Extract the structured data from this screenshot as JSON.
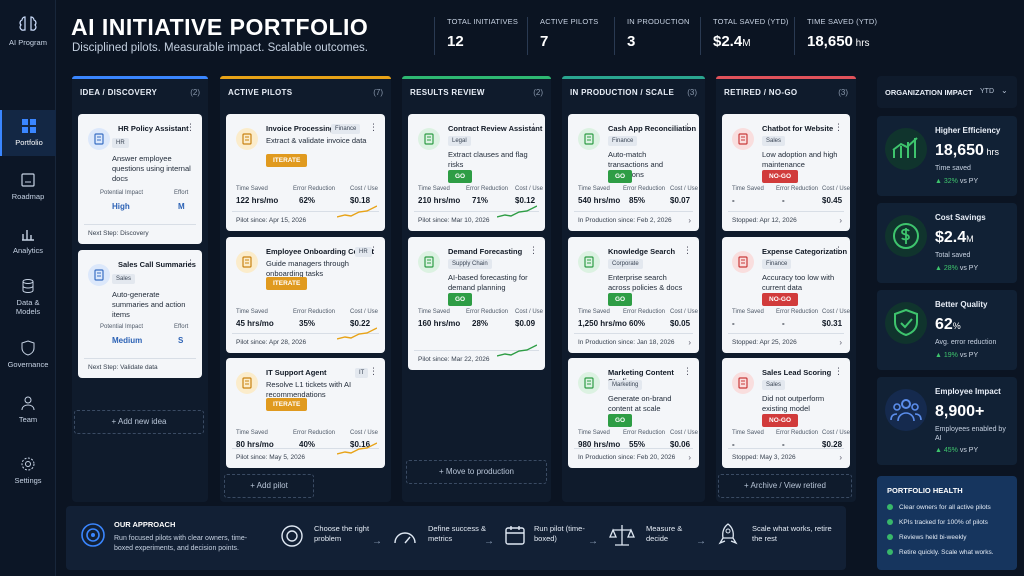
{
  "sidebar": {
    "brand": "AI Program",
    "items": [
      {
        "label": "Portfolio",
        "icon": "grid-icon"
      },
      {
        "label": "Roadmap",
        "icon": "roadmap-icon"
      },
      {
        "label": "Analytics",
        "icon": "analytics-icon"
      },
      {
        "label": "Data & Models",
        "icon": "database-icon"
      },
      {
        "label": "Governance",
        "icon": "shield-icon"
      },
      {
        "label": "Team",
        "icon": "team-icon"
      },
      {
        "label": "Settings",
        "icon": "gear-icon"
      }
    ]
  },
  "header": {
    "title": "AI INITIATIVE PORTFOLIO",
    "subtitle": "Disciplined pilots. Measurable impact. Scalable outcomes.",
    "stats": [
      {
        "label": "TOTAL INITIATIVES",
        "value": "12",
        "unit": ""
      },
      {
        "label": "ACTIVE PILOTS",
        "value": "7",
        "unit": ""
      },
      {
        "label": "IN PRODUCTION",
        "value": "3",
        "unit": ""
      },
      {
        "label": "TOTAL SAVED (YTD)",
        "value": "$2.4",
        "unit": "M"
      },
      {
        "label": "TIME SAVED (YTD)",
        "value": "18,650",
        "unit": " hrs"
      }
    ]
  },
  "columns": {
    "idea": {
      "title": "IDEA / DISCOVERY",
      "count": "(2)",
      "color": "#3a86ff",
      "cards": [
        {
          "title": "HR Policy Assistant",
          "tag": "HR",
          "desc": "Answer employee questions using internal docs",
          "m1l": "Potential Impact",
          "m1v": "High",
          "m2l": "Effort",
          "m2v": "M",
          "next": "Next Step: Discovery"
        },
        {
          "title": "Sales Call Summaries",
          "tag": "Sales",
          "desc": "Auto-generate summaries and action items",
          "m1l": "Potential Impact",
          "m1v": "Medium",
          "m2l": "Effort",
          "m2v": "S",
          "next": "Next Step: Validate data"
        }
      ],
      "button": "+ Add new idea"
    },
    "pilots": {
      "title": "ACTIVE PILOTS",
      "count": "(7)",
      "color": "#e8a317",
      "cards": [
        {
          "title": "Invoice Processing",
          "tag": "Finance",
          "desc": "Extract & validate invoice data",
          "status": "ITERATE",
          "ts": "122 hrs/mo",
          "er": "62%",
          "cu": "$0.18",
          "since": "Pilot since: Apr 15, 2026"
        },
        {
          "title": "Employee Onboarding Copilot",
          "tag": "HR",
          "desc": "Guide managers through onboarding tasks",
          "status": "ITERATE",
          "ts": "45 hrs/mo",
          "er": "35%",
          "cu": "$0.22",
          "since": "Pilot since: Apr 28, 2026"
        },
        {
          "title": "IT Support Agent",
          "tag": "IT",
          "desc": "Resolve L1 tickets with AI recommendations",
          "status": "ITERATE",
          "ts": "80 hrs/mo",
          "er": "40%",
          "cu": "$0.16",
          "since": "Pilot since: May 5, 2026"
        }
      ],
      "button": "+ Add pilot"
    },
    "results": {
      "title": "RESULTS REVIEW",
      "count": "(2)",
      "color": "#2eb872",
      "cards": [
        {
          "title": "Contract Review Assistant",
          "tag": "Legal",
          "desc": "Extract clauses and flag risks",
          "status": "GO",
          "ts": "210 hrs/mo",
          "er": "71%",
          "cu": "$0.12",
          "since": "Pilot since: Mar 10, 2026"
        },
        {
          "title": "Demand Forecasting",
          "tag": "Supply Chain",
          "desc": "AI-based forecasting for demand planning",
          "status": "GO",
          "ts": "160 hrs/mo",
          "er": "28%",
          "cu": "$0.09",
          "since": "Pilot since: Mar 22, 2026"
        }
      ],
      "button": "+ Move to production"
    },
    "prod": {
      "title": "IN PRODUCTION / SCALE",
      "count": "(3)",
      "color": "#2aa58f",
      "cards": [
        {
          "title": "Cash App Reconciliation",
          "tag": "Finance",
          "desc": "Auto-match transactions and exceptions",
          "status": "GO",
          "ts": "540 hrs/mo",
          "er": "85%",
          "cu": "$0.07",
          "since": "In Production since: Feb 2, 2026"
        },
        {
          "title": "Knowledge Search",
          "tag": "Corporate",
          "desc": "Enterprise search across policies & docs",
          "status": "GO",
          "ts": "1,250 hrs/mo",
          "er": "60%",
          "cu": "$0.05",
          "since": "In Production since: Jan 18, 2026"
        },
        {
          "title": "Marketing Content Studio",
          "tag": "Marketing",
          "desc": "Generate on-brand content at scale",
          "status": "GO",
          "ts": "980 hrs/mo",
          "er": "55%",
          "cu": "$0.06",
          "since": "In Production since: Feb 20, 2026"
        }
      ]
    },
    "retired": {
      "title": "RETIRED / NO-GO",
      "count": "(3)",
      "color": "#e0525a",
      "cards": [
        {
          "title": "Chatbot for Website",
          "tag": "Sales",
          "desc": "Low adoption and high maintenance",
          "status": "NO-GO",
          "ts": "-",
          "er": "-",
          "cu": "$0.45",
          "since": "Stopped: Apr 12, 2026"
        },
        {
          "title": "Expense Categorization",
          "tag": "Finance",
          "desc": "Accuracy too low with current data",
          "status": "NO-GO",
          "ts": "-",
          "er": "-",
          "cu": "$0.31",
          "since": "Stopped: Apr 25, 2026"
        },
        {
          "title": "Sales Lead Scoring",
          "tag": "Sales",
          "desc": "Did not outperform existing model",
          "status": "NO-GO",
          "ts": "-",
          "er": "-",
          "cu": "$0.28",
          "since": "Stopped: May 3, 2026"
        }
      ],
      "button": "+ Archive / View retired"
    }
  },
  "metric_labels": {
    "time": "Time Saved",
    "error": "Error Reduction",
    "cost": "Cost / Use"
  },
  "org": {
    "title": "ORGANIZATION IMPACT",
    "period": "YTD",
    "cards": [
      {
        "title": "Higher Efficiency",
        "value": "18,650",
        "unit": " hrs",
        "sub": "Time saved",
        "delta": "▲ 32%",
        "vs": " vs PY"
      },
      {
        "title": "Cost Savings",
        "value": "$2.4",
        "unit": "M",
        "sub": "Total saved",
        "delta": "▲ 28%",
        "vs": " vs PY"
      },
      {
        "title": "Better Quality",
        "value": "62",
        "unit": "%",
        "sub": "Avg. error reduction",
        "delta": "▲ 19%",
        "vs": " vs PY"
      },
      {
        "title": "Employee Impact",
        "value": "8,900+",
        "unit": "",
        "sub": "Employees enabled by AI",
        "delta": "▲ 45%",
        "vs": " vs PY"
      }
    ]
  },
  "approach": {
    "title": "OUR APPROACH",
    "desc": "Run focused pilots with clear owners, time-boxed experiments, and decision points.",
    "steps": [
      "Choose the right problem",
      "Define success & metrics",
      "Run pilot (time-boxed)",
      "Measure & decide",
      "Scale what works, retire the rest"
    ]
  },
  "health": {
    "title": "PORTFOLIO HEALTH",
    "items": [
      "Clear owners for all active pilots",
      "KPIs tracked for 100% of pilots",
      "Reviews held bi-weekly",
      "Retire quickly. Scale what works."
    ]
  }
}
